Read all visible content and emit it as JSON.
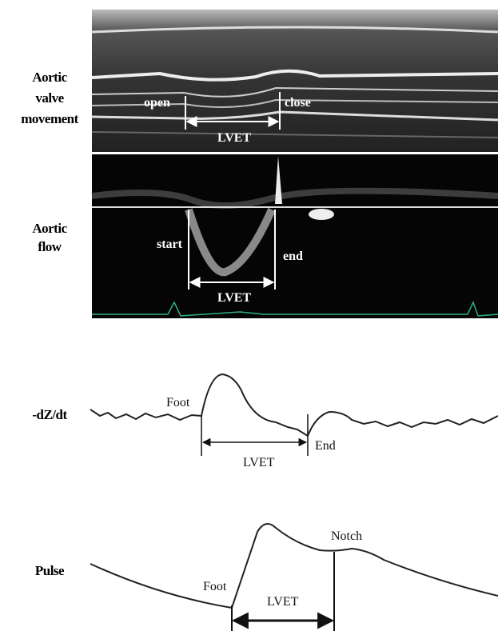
{
  "panels": [
    {
      "label": [
        "Aortic",
        "valve",
        "movement"
      ],
      "annotations": [
        "open",
        "close",
        "LVET"
      ]
    },
    {
      "label": [
        "Aortic",
        "flow"
      ],
      "annotations": [
        "start",
        "end",
        "LVET"
      ]
    },
    {
      "label": [
        "-dZ/dt"
      ],
      "annotations": [
        "Foot",
        "End",
        "LVET"
      ]
    },
    {
      "label": [
        "Pulse"
      ],
      "annotations": [
        "Foot",
        "Notch",
        "LVET"
      ]
    }
  ]
}
